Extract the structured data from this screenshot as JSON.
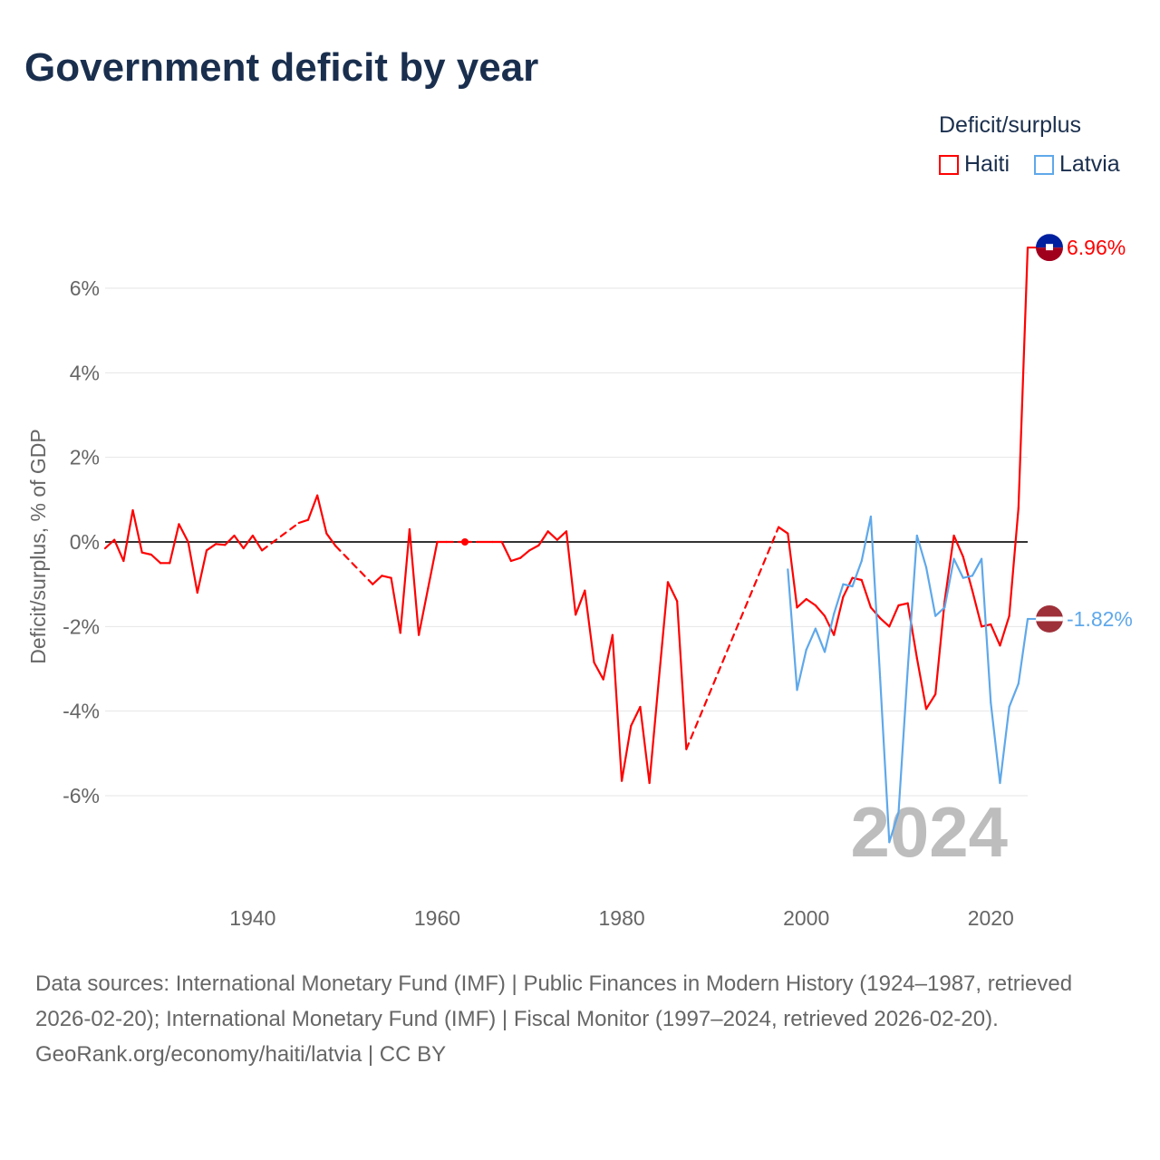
{
  "title": "Government deficit by year",
  "legend": {
    "title": "Deficit/surplus",
    "items": [
      {
        "label": "Haiti",
        "color": "#ff0000"
      },
      {
        "label": "Latvia",
        "color": "#5fa8ea"
      }
    ]
  },
  "year_label": "2024",
  "footer": {
    "sources": "Data sources: International Monetary Fund (IMF) | Public Finances in Modern History (1924–1987, retrieved 2026-02-20); International Monetary Fund (IMF) | Fiscal Monitor (1997–2024, retrieved 2026-02-20).",
    "link": "GeoRank.org/economy/haiti/latvia | CC BY"
  },
  "chart_data": {
    "type": "line",
    "title": "Government deficit by year",
    "ylabel": "Deficit/surplus, % of GDP",
    "xlabel": "",
    "xlim": [
      1924,
      2024
    ],
    "ylim": [
      -8.3,
      7.5
    ],
    "xticks": [
      1940,
      1960,
      1980,
      2000,
      2020
    ],
    "yticks": [
      {
        "v": 6,
        "label": "6%"
      },
      {
        "v": 4,
        "label": "4%"
      },
      {
        "v": 2,
        "label": "2%"
      },
      {
        "v": 0,
        "label": "0%"
      },
      {
        "v": -2,
        "label": "-2%"
      },
      {
        "v": -4,
        "label": "-4%"
      },
      {
        "v": -6,
        "label": "-6%"
      }
    ],
    "grid": true,
    "legend_position": "top-right",
    "series": [
      {
        "name": "Haiti",
        "color": "#ff0000",
        "end_label": "6.96%",
        "start": 1924,
        "values": [
          -0.15,
          0.05,
          -0.45,
          0.75,
          -0.25,
          -0.3,
          -0.5,
          -0.5,
          0.42,
          0.0,
          -1.2,
          -0.2,
          -0.05,
          -0.07,
          0.15,
          -0.15,
          0.15,
          -0.2,
          null,
          null,
          null,
          0.45,
          0.52,
          1.1,
          0.2,
          -0.1,
          null,
          null,
          null,
          -1.0,
          -0.8,
          -0.85,
          -2.15,
          0.3,
          -2.2,
          -1.1,
          0.0,
          0.0,
          null,
          0.0,
          null,
          0.0,
          0.0,
          0.0,
          -0.45,
          -0.38,
          -0.2,
          -0.08,
          0.25,
          0.05,
          0.25,
          -1.72,
          -1.15,
          -2.85,
          -3.25,
          -2.2,
          -5.65,
          -4.35,
          -3.9,
          -5.7,
          -3.3,
          -0.95,
          -1.4,
          -4.9,
          null,
          null,
          null,
          null,
          null,
          null,
          null,
          null,
          null,
          0.35,
          0.2,
          -1.55,
          -1.35,
          -1.5,
          -1.75,
          -2.2,
          -1.3,
          -0.85,
          -0.9,
          -1.55,
          -1.8,
          -2.0,
          -1.5,
          -1.45,
          -2.75,
          -3.95,
          -3.6,
          -1.4,
          0.15,
          -0.35,
          -1.15,
          -2.0,
          -1.95,
          -2.45,
          -1.75,
          0.8,
          6.96
        ]
      },
      {
        "name": "Latvia",
        "color": "#5fa8ea",
        "end_label": "-1.82%",
        "start": 1998,
        "values": [
          -0.65,
          -3.5,
          -2.55,
          -2.05,
          -2.6,
          -1.7,
          -1.0,
          -1.05,
          -0.45,
          0.6,
          -3.2,
          -7.1,
          -6.4,
          -3.0,
          0.15,
          -0.6,
          -1.75,
          -1.55,
          -0.4,
          -0.85,
          -0.8,
          -0.4,
          -3.8,
          -5.7,
          -3.9,
          -3.35,
          -1.82
        ]
      }
    ]
  }
}
